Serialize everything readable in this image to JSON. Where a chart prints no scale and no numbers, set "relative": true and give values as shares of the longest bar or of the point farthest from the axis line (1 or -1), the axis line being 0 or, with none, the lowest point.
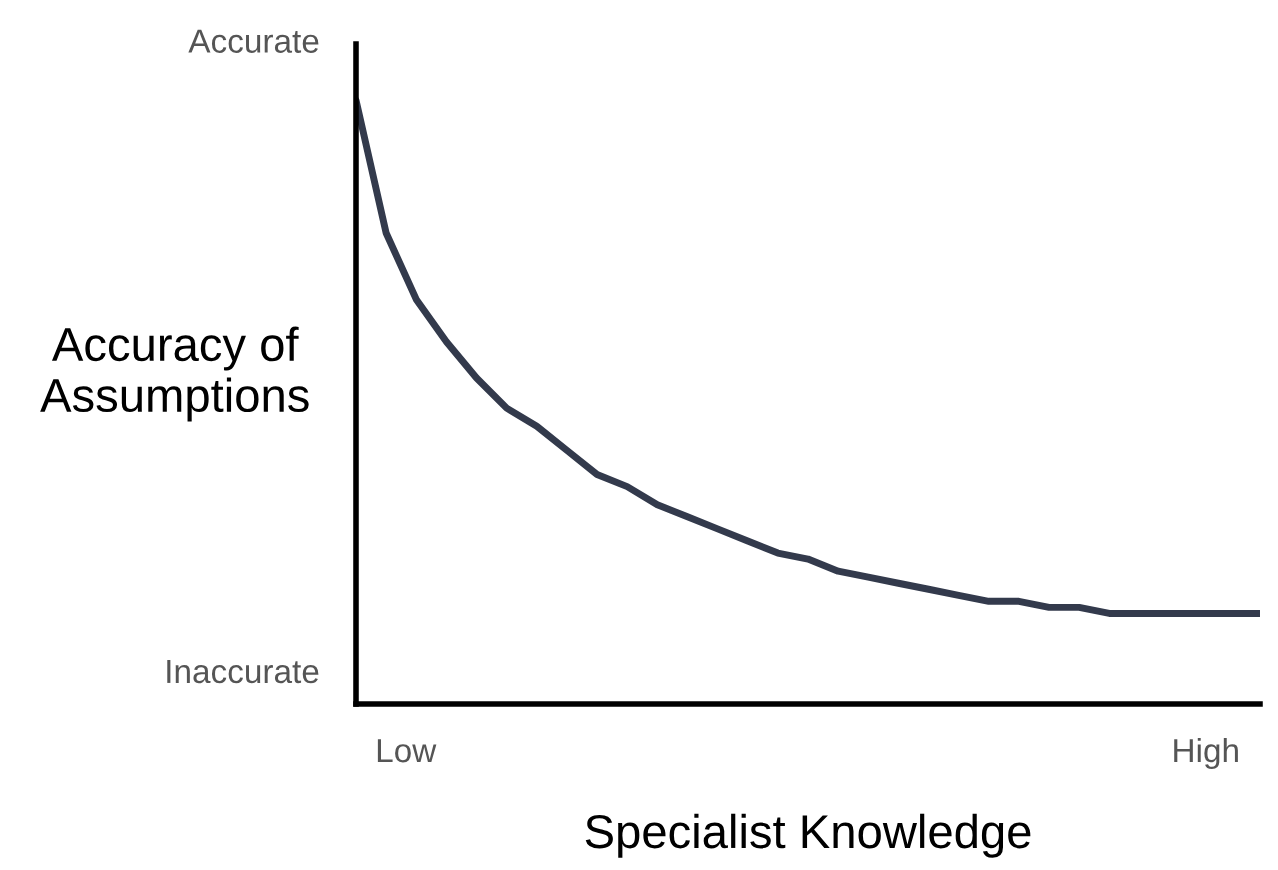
{
  "chart_data": {
    "type": "line",
    "relative": true,
    "xlabel": "Specialist Knowledge",
    "ylabel": "Accuracy of\nAssumptions",
    "annotations": [
      "Accurate",
      "Inaccurate",
      "Low",
      "High"
    ],
    "categories": [
      null,
      null,
      null,
      null,
      null,
      null,
      null,
      null,
      null,
      null,
      null,
      null,
      null,
      null,
      null,
      null,
      null,
      null,
      null,
      null,
      null,
      null,
      null,
      null,
      null,
      null,
      null,
      null,
      null,
      null,
      null
    ],
    "grid": false,
    "legend": false,
    "marker": "none",
    "line_style": "solid",
    "series": [
      {
        "color": "#333a4c",
        "values": [
          1.0,
          0.78,
          0.67,
          0.6,
          0.54,
          0.49,
          0.46,
          0.42,
          0.38,
          0.36,
          0.33,
          0.31,
          0.29,
          0.27,
          0.25,
          0.24,
          0.22,
          0.21,
          0.2,
          0.19,
          0.18,
          0.17,
          0.17,
          0.16,
          0.16,
          0.15,
          0.15,
          0.15,
          0.15,
          0.15,
          0.15
        ]
      }
    ]
  }
}
